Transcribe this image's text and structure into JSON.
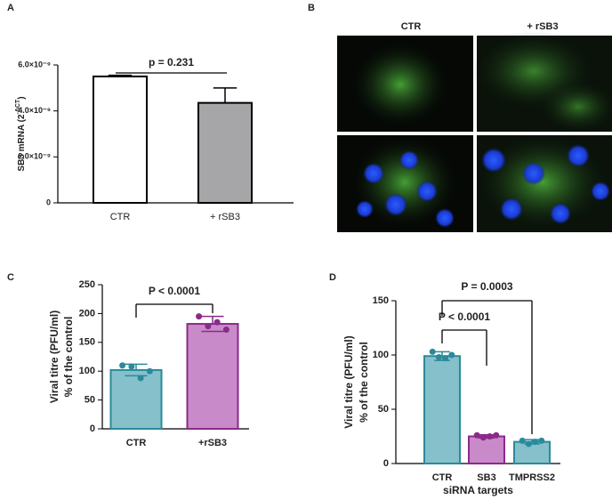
{
  "chart_data": [
    {
      "type": "bar",
      "panel": "A",
      "ylabel_parts": [
        "SB3 mRNA (2",
        "-ΔCT",
        ")"
      ],
      "categories": [
        "CTR",
        "+ rSB3"
      ],
      "values": [
        5.5e-09,
        4.35e-09
      ],
      "errors": [
        5e-11,
        6.5e-10
      ],
      "colors": [
        "#ffffff",
        "#a6a6a8"
      ],
      "edge_colors": [
        "#000000",
        "#000000"
      ],
      "ylim": [
        0,
        6e-09
      ],
      "yticks": [
        {
          "value": 0,
          "label": "0"
        },
        {
          "value": 2e-09,
          "label": "2.0×10⁻⁹"
        },
        {
          "value": 4e-09,
          "label": "4.0×10⁻⁹"
        },
        {
          "value": 6e-09,
          "label": "6.0×10⁻⁹"
        }
      ],
      "annotations": [
        "p = 0.231"
      ]
    },
    {
      "type": "bar",
      "panel": "C",
      "ylabel": [
        "Viral titre (PFU/ml)",
        "% of the control"
      ],
      "categories": [
        "CTR",
        "+rSB3"
      ],
      "values": [
        102,
        182
      ],
      "errors": [
        10,
        13
      ],
      "points": [
        [
          110,
          108,
          88,
          100
        ],
        [
          195,
          178,
          185,
          172
        ]
      ],
      "colors": [
        "#86c0cb",
        "#c98ac9"
      ],
      "edge_colors": [
        "#2a8a9b",
        "#8a2a8a"
      ],
      "ylim": [
        0,
        250
      ],
      "yticks": [
        0,
        50,
        100,
        150,
        200,
        250
      ],
      "annotations": [
        "P < 0.0001"
      ]
    },
    {
      "type": "bar",
      "panel": "D",
      "ylabel": [
        "Viral titre (PFU/ml)",
        "% of the control"
      ],
      "xlabel": "siRNA targets",
      "categories": [
        "CTR",
        "SB3",
        "TMPRSS2"
      ],
      "values": [
        99,
        25,
        20
      ],
      "errors": [
        4,
        1.5,
        2
      ],
      "points": [
        [
          103,
          98,
          97,
          100
        ],
        [
          26,
          24,
          25,
          26
        ],
        [
          21,
          18,
          20,
          21
        ]
      ],
      "colors": [
        "#86c0cb",
        "#c98ac9",
        "#86c0cb"
      ],
      "edge_colors": [
        "#2a8a9b",
        "#8a2a8a",
        "#2a8a9b"
      ],
      "ylim": [
        0,
        150
      ],
      "yticks": [
        0,
        50,
        100,
        150
      ],
      "annotations": [
        "P < 0.0001",
        "P = 0.0003"
      ]
    }
  ],
  "images": {
    "panel": "B",
    "columns": [
      "CTR",
      "+ rSB3"
    ]
  }
}
